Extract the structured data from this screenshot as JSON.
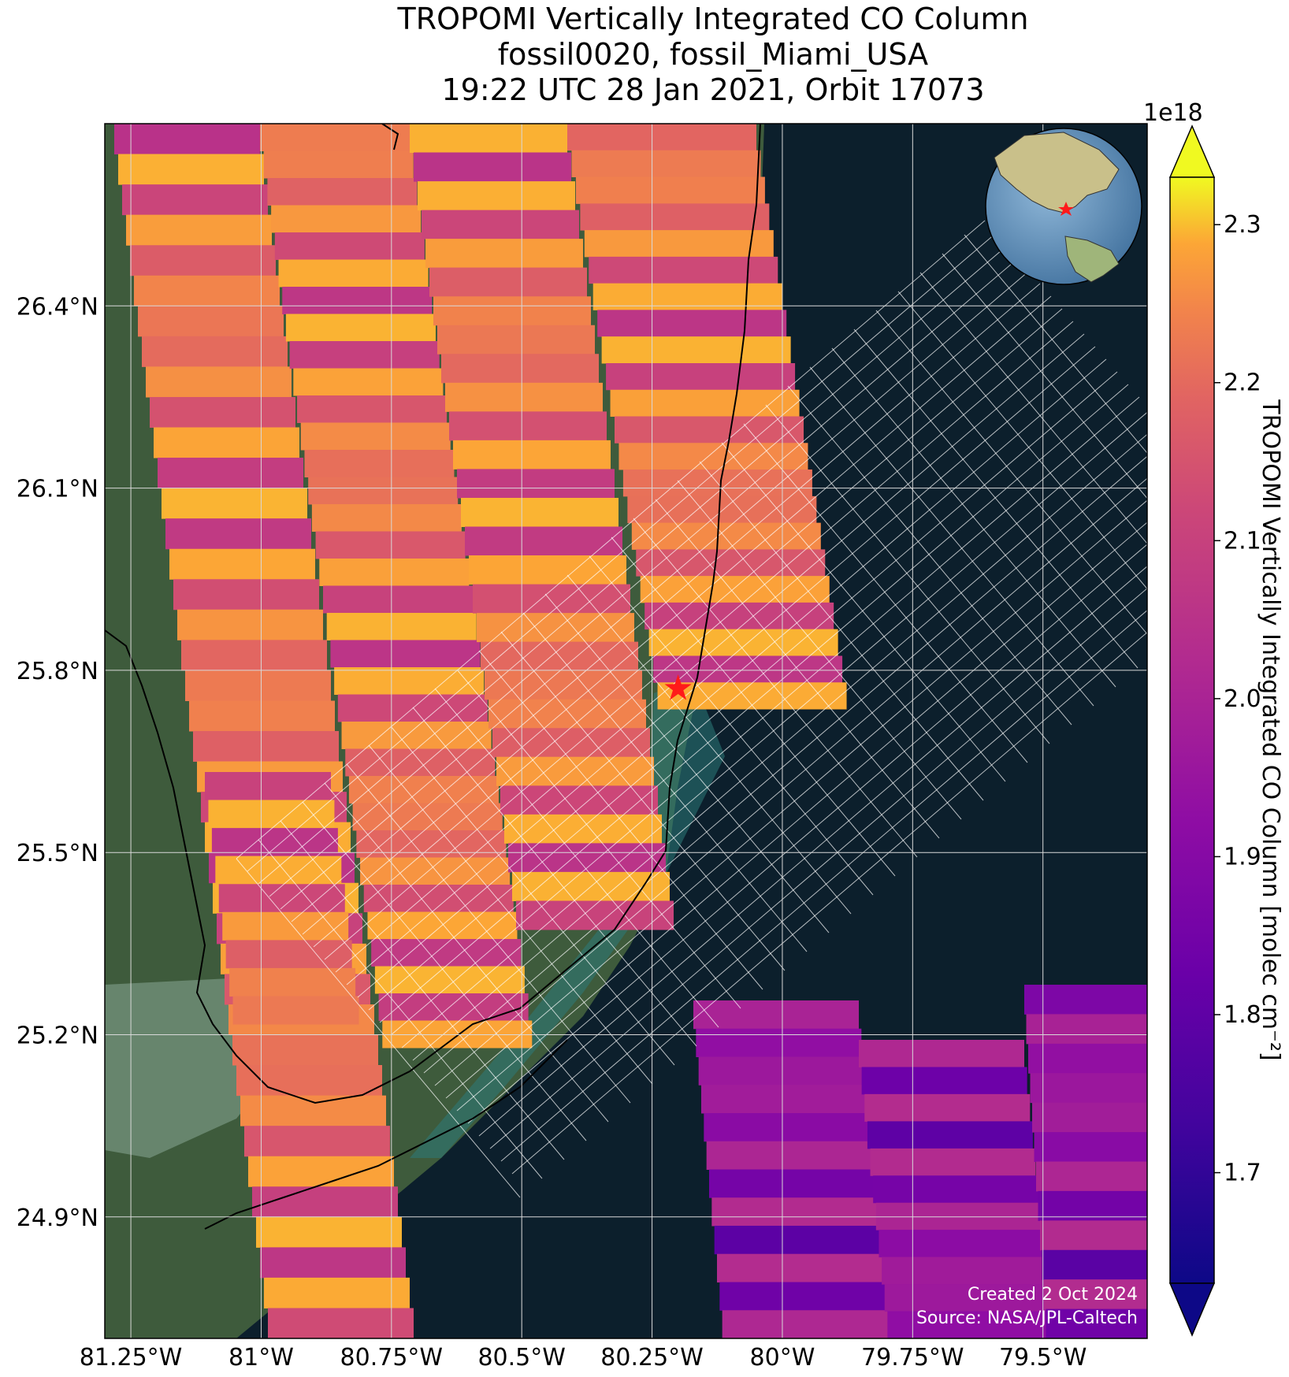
{
  "title": {
    "line1": "TROPOMI Vertically Integrated CO Column",
    "line2": "fossil0020, fossil_Miami_USA",
    "line3": "19:22 UTC 28 Jan 2021, Orbit 17073"
  },
  "map": {
    "lon_range": [
      -81.3,
      -79.3
    ],
    "lat_range": [
      24.7,
      26.7
    ],
    "lon_ticks": [
      {
        "value": -81.25,
        "label": "81.25°W"
      },
      {
        "value": -81.0,
        "label": "81°W"
      },
      {
        "value": -80.75,
        "label": "80.75°W"
      },
      {
        "value": -80.5,
        "label": "80.5°W"
      },
      {
        "value": -80.25,
        "label": "80.25°W"
      },
      {
        "value": -80.0,
        "label": "80°W"
      },
      {
        "value": -79.75,
        "label": "79.75°W"
      },
      {
        "value": -79.5,
        "label": "79.5°W"
      }
    ],
    "lat_ticks": [
      {
        "value": 26.4,
        "label": "26.4°N"
      },
      {
        "value": 26.1,
        "label": "26.1°N"
      },
      {
        "value": 25.8,
        "label": "25.8°N"
      },
      {
        "value": 25.5,
        "label": "25.5°N"
      },
      {
        "value": 25.2,
        "label": "25.2°N"
      },
      {
        "value": 24.9,
        "label": "24.9°N"
      }
    ],
    "site_marker": {
      "lon": -80.2,
      "lat": 25.77,
      "color": "#ff1a1a"
    },
    "colors": {
      "ocean": "#0c1f2c",
      "land": "#3a5a3a",
      "gridline": "#d9d9d9",
      "target_grid": "#ffffff"
    }
  },
  "colorbar": {
    "label": "TROPOMI Vertically Integrated CO Column [molec cm⁻²]",
    "exponent": "1e18",
    "vmin": 1.63,
    "vmax": 2.33,
    "ticks": [
      "1.7",
      "1.8",
      "1.9",
      "2.0",
      "2.1",
      "2.2",
      "2.3"
    ],
    "colormap": "plasma"
  },
  "credits": {
    "created": "Created 2 Oct 2024",
    "source": "Source: NASA/JPL-Caltech"
  }
}
